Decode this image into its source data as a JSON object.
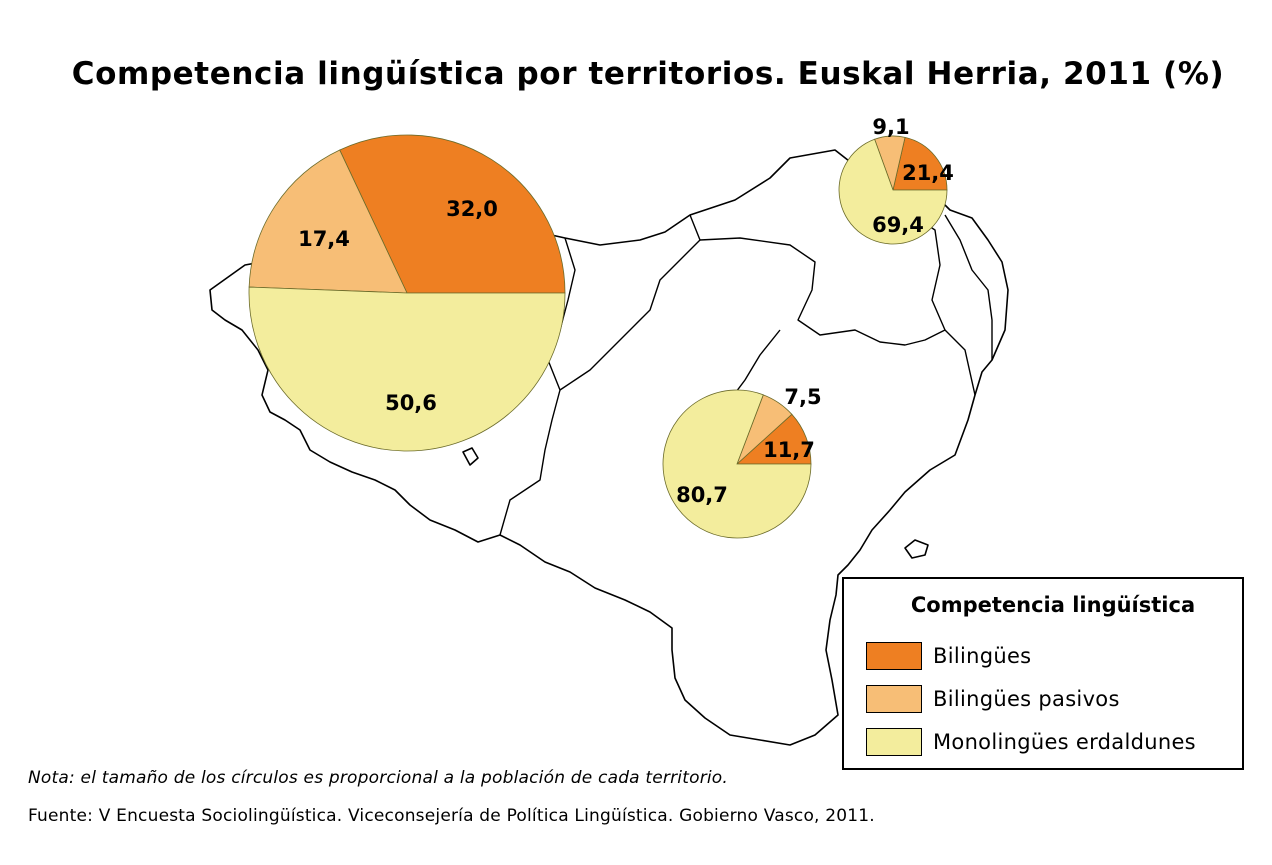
{
  "title": "Competencia lingüística por territorios. Euskal Herria, 2011 (%)",
  "colors": {
    "bilingues": "#ee7f22",
    "pasivos": "#f7be76",
    "monolingues": "#f3ed9d"
  },
  "pies": [
    {
      "name": "large",
      "slices": [
        {
          "key": "bilingues",
          "value": 32.0,
          "label": "32,0"
        },
        {
          "key": "pasivos",
          "value": 17.4,
          "label": "17,4"
        },
        {
          "key": "monolingues",
          "value": 50.6,
          "label": "50,6"
        }
      ]
    },
    {
      "name": "northeast",
      "slices": [
        {
          "key": "bilingues",
          "value": 21.4,
          "label": "21,4"
        },
        {
          "key": "pasivos",
          "value": 9.1,
          "label": "9,1"
        },
        {
          "key": "monolingues",
          "value": 69.4,
          "label": "69,4"
        }
      ]
    },
    {
      "name": "south",
      "slices": [
        {
          "key": "bilingues",
          "value": 11.7,
          "label": "11,7"
        },
        {
          "key": "pasivos",
          "value": 7.5,
          "label": "7,5"
        },
        {
          "key": "monolingues",
          "value": 80.7,
          "label": "80,7"
        }
      ]
    }
  ],
  "legend": {
    "title": "Competencia lingüística",
    "items": [
      {
        "key": "bilingues",
        "label": "Bilingües"
      },
      {
        "key": "pasivos",
        "label": "Bilingües pasivos"
      },
      {
        "key": "monolingues",
        "label": "Monolingües erdaldunes"
      }
    ]
  },
  "note": "Nota: el tamaño de los círculos es proporcional a la población de cada territorio.",
  "source": "Fuente: V Encuesta Sociolingüística. Viceconsejería de Política Lingüística. Gobierno Vasco, 2011."
}
